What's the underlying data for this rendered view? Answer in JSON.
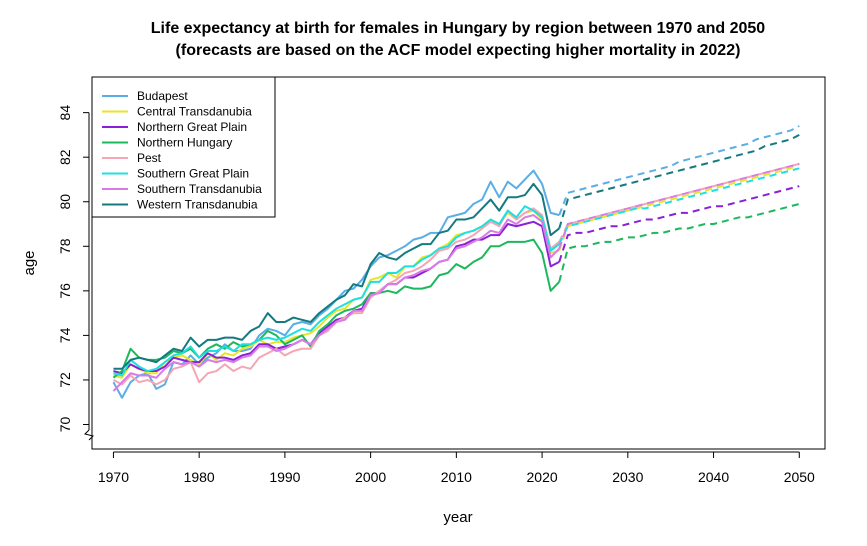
{
  "chart_data": {
    "type": "line",
    "title": "Life expectancy at birth for females in Hungary by region between 1970 and 2050",
    "subtitle": "(forecasts are based on the ACF model expecting higher mortality in 2022)",
    "xlabel": "year",
    "ylabel": "age",
    "xlim": [
      1967.5,
      2053
    ],
    "ylim": [
      68.9,
      85.6
    ],
    "x_ticks": [
      "1970",
      "1980",
      "1990",
      "2000",
      "2010",
      "2020",
      "2030",
      "2040",
      "2050"
    ],
    "y_ticks": [
      "70",
      "72",
      "74",
      "76",
      "78",
      "80",
      "82",
      "84"
    ],
    "axis_break": "y",
    "legend_position": "top-left",
    "grid": false,
    "observed_years": [
      1970,
      2022
    ],
    "forecast_years": [
      2022,
      2050
    ],
    "forecast_style": "dashed",
    "series": [
      {
        "name": "Budapest",
        "color": "#5AAEE6",
        "observed": [
          71.9,
          71.2,
          71.9,
          72.2,
          72.3,
          71.6,
          71.8,
          72.8,
          72.7,
          73.1,
          72.7,
          73.0,
          73.2,
          73.6,
          73.3,
          73.3,
          73.4,
          74.0,
          74.3,
          74.2,
          74.0,
          74.5,
          74.6,
          74.5,
          74.9,
          75.2,
          75.6,
          76.0,
          76.1,
          76.5,
          77.1,
          77.5,
          77.6,
          77.8,
          78.0,
          78.3,
          78.4,
          78.6,
          78.6,
          79.3,
          79.4,
          79.5,
          79.9,
          80.1,
          80.9,
          80.2,
          80.9,
          80.6,
          81.0,
          81.4,
          80.8,
          79.5,
          79.4
        ],
        "forecast": [
          79.4,
          80.4,
          80.5,
          80.6,
          80.7,
          80.8,
          80.9,
          81.0,
          81.1,
          81.2,
          81.3,
          81.4,
          81.5,
          81.6,
          81.8,
          81.9,
          82.0,
          82.1,
          82.2,
          82.3,
          82.4,
          82.5,
          82.6,
          82.8,
          82.9,
          83.0,
          83.1,
          83.2,
          83.4
        ]
      },
      {
        "name": "Central Transdanubia",
        "color": "#E6E629",
        "observed": [
          72.2,
          72.1,
          72.7,
          72.5,
          72.3,
          72.3,
          72.8,
          73.0,
          73.1,
          72.9,
          72.7,
          73.2,
          72.9,
          73.2,
          73.1,
          73.4,
          73.5,
          73.8,
          73.6,
          73.7,
          73.7,
          73.9,
          74.0,
          74.1,
          74.4,
          74.8,
          75.1,
          75.2,
          75.6,
          75.7,
          76.5,
          76.6,
          76.8,
          76.6,
          77.1,
          77.1,
          77.5,
          77.6,
          77.9,
          78.1,
          78.5,
          78.6,
          78.7,
          78.9,
          79.2,
          79.0,
          79.5,
          79.2,
          79.5,
          79.6,
          79.2,
          77.7,
          77.8
        ],
        "forecast": [
          77.8,
          78.9,
          79.0,
          79.1,
          79.2,
          79.3,
          79.4,
          79.5,
          79.6,
          79.7,
          79.8,
          79.9,
          80.0,
          80.1,
          80.2,
          80.3,
          80.4,
          80.5,
          80.6,
          80.7,
          80.8,
          80.9,
          81.0,
          81.1,
          81.2,
          81.3,
          81.4,
          81.5,
          81.7
        ]
      },
      {
        "name": "Northern Great Plain",
        "color": "#8B21D6",
        "observed": [
          72.4,
          72.3,
          72.7,
          72.5,
          72.4,
          72.4,
          72.6,
          73.0,
          72.9,
          72.8,
          72.8,
          73.2,
          73.0,
          73.0,
          72.9,
          73.1,
          73.2,
          73.6,
          73.6,
          73.4,
          73.5,
          73.6,
          73.8,
          73.6,
          74.1,
          74.4,
          74.7,
          74.8,
          75.1,
          75.2,
          75.9,
          75.9,
          76.3,
          76.3,
          76.6,
          76.6,
          76.8,
          77.0,
          77.3,
          77.4,
          78.0,
          78.1,
          78.3,
          78.3,
          78.5,
          78.5,
          79.0,
          78.9,
          79.0,
          79.1,
          78.9,
          77.1,
          77.3
        ],
        "forecast": [
          77.3,
          78.5,
          78.6,
          78.6,
          78.7,
          78.8,
          78.9,
          78.9,
          79.0,
          79.1,
          79.2,
          79.2,
          79.3,
          79.4,
          79.5,
          79.5,
          79.6,
          79.7,
          79.8,
          79.8,
          79.9,
          80.0,
          80.1,
          80.2,
          80.3,
          80.4,
          80.5,
          80.6,
          80.7
        ]
      },
      {
        "name": "Northern Hungary",
        "color": "#1CB85C",
        "observed": [
          72.1,
          72.4,
          73.4,
          73.0,
          72.9,
          72.9,
          73.0,
          73.3,
          73.2,
          73.4,
          73.0,
          73.4,
          73.6,
          73.4,
          73.7,
          73.5,
          73.6,
          73.8,
          74.2,
          74.0,
          73.6,
          73.8,
          74.0,
          73.5,
          74.2,
          74.5,
          74.9,
          75.1,
          75.2,
          75.4,
          75.9,
          75.9,
          76.0,
          75.9,
          76.2,
          76.1,
          76.1,
          76.2,
          76.7,
          76.8,
          77.2,
          77.0,
          77.3,
          77.5,
          78.0,
          78.0,
          78.2,
          78.2,
          78.2,
          78.3,
          77.7,
          76.0,
          76.4
        ],
        "forecast": [
          76.4,
          77.9,
          78.0,
          78.0,
          78.1,
          78.2,
          78.2,
          78.3,
          78.4,
          78.4,
          78.5,
          78.6,
          78.6,
          78.7,
          78.8,
          78.8,
          78.9,
          79.0,
          79.0,
          79.1,
          79.2,
          79.3,
          79.3,
          79.4,
          79.5,
          79.6,
          79.7,
          79.8,
          79.9
        ]
      },
      {
        "name": "Pest",
        "color": "#F4A6B4",
        "observed": [
          72.0,
          71.8,
          72.2,
          71.9,
          72.0,
          71.8,
          72.0,
          72.5,
          72.6,
          72.8,
          71.9,
          72.3,
          72.4,
          72.7,
          72.4,
          72.6,
          72.5,
          73.0,
          73.2,
          73.4,
          73.1,
          73.3,
          73.4,
          73.4,
          74.0,
          74.2,
          74.6,
          74.8,
          75.0,
          75.0,
          75.7,
          76.0,
          76.3,
          76.5,
          76.8,
          76.9,
          77.1,
          77.4,
          77.8,
          77.9,
          78.2,
          78.3,
          78.5,
          78.8,
          79.1,
          78.9,
          79.6,
          79.2,
          79.5,
          79.7,
          79.4,
          77.9,
          78.2
        ],
        "forecast": [
          78.2,
          79.0,
          79.1,
          79.2,
          79.3,
          79.4,
          79.5,
          79.6,
          79.7,
          79.8,
          79.9,
          80.0,
          80.1,
          80.2,
          80.3,
          80.4,
          80.5,
          80.6,
          80.7,
          80.8,
          80.9,
          81.0,
          81.1,
          81.2,
          81.3,
          81.4,
          81.5,
          81.6,
          81.7
        ]
      },
      {
        "name": "Southern Great Plain",
        "color": "#1DE0E0",
        "observed": [
          72.3,
          72.2,
          72.9,
          72.6,
          72.4,
          72.5,
          72.8,
          73.1,
          73.2,
          73.5,
          73.0,
          73.3,
          73.3,
          73.5,
          73.3,
          73.6,
          73.6,
          73.8,
          73.9,
          73.8,
          73.9,
          74.1,
          74.3,
          74.2,
          74.6,
          74.9,
          75.2,
          75.4,
          75.6,
          75.7,
          76.4,
          76.4,
          76.8,
          76.8,
          77.1,
          77.1,
          77.4,
          77.6,
          77.9,
          78.0,
          78.4,
          78.6,
          78.7,
          78.9,
          79.2,
          79.0,
          79.6,
          79.3,
          79.8,
          79.6,
          79.3,
          77.8,
          78.1
        ],
        "forecast": [
          78.1,
          78.9,
          79.0,
          79.1,
          79.2,
          79.3,
          79.4,
          79.5,
          79.6,
          79.7,
          79.7,
          79.8,
          79.9,
          80.0,
          80.1,
          80.2,
          80.3,
          80.4,
          80.5,
          80.6,
          80.7,
          80.8,
          80.9,
          81.0,
          81.1,
          81.2,
          81.3,
          81.4,
          81.5
        ]
      },
      {
        "name": "Southern Transdanubia",
        "color": "#D97BE6",
        "observed": [
          71.5,
          71.9,
          72.3,
          72.2,
          72.2,
          72.1,
          72.5,
          72.8,
          72.7,
          72.8,
          72.6,
          72.9,
          72.8,
          72.9,
          72.8,
          73.0,
          73.1,
          73.5,
          73.5,
          73.3,
          73.4,
          73.6,
          73.8,
          73.6,
          74.0,
          74.3,
          74.6,
          74.7,
          75.1,
          75.1,
          75.8,
          75.9,
          76.3,
          76.3,
          76.6,
          76.7,
          76.9,
          77.0,
          77.3,
          77.4,
          77.9,
          78.0,
          78.2,
          78.4,
          78.7,
          78.6,
          79.2,
          79.0,
          79.3,
          79.4,
          79.1,
          77.5,
          77.9
        ],
        "forecast": [
          77.9,
          79.0,
          79.1,
          79.2,
          79.3,
          79.4,
          79.5,
          79.6,
          79.7,
          79.8,
          79.9,
          80.0,
          80.1,
          80.2,
          80.3,
          80.4,
          80.5,
          80.6,
          80.7,
          80.8,
          80.9,
          81.0,
          81.1,
          81.2,
          81.3,
          81.4,
          81.5,
          81.6,
          81.7
        ]
      },
      {
        "name": "Western Transdanubia",
        "color": "#147A80",
        "observed": [
          72.5,
          72.5,
          72.9,
          73.0,
          72.9,
          72.8,
          73.1,
          73.4,
          73.3,
          73.9,
          73.5,
          73.8,
          73.8,
          73.9,
          73.9,
          73.8,
          74.2,
          74.4,
          75.0,
          74.6,
          74.6,
          74.8,
          74.7,
          74.6,
          75.0,
          75.3,
          75.6,
          75.8,
          76.3,
          76.2,
          77.2,
          77.7,
          77.5,
          77.4,
          77.7,
          77.9,
          78.1,
          78.1,
          78.6,
          78.7,
          79.2,
          79.2,
          79.3,
          79.7,
          80.1,
          79.6,
          80.2,
          80.2,
          80.3,
          80.8,
          80.3,
          78.5,
          78.8
        ],
        "forecast": [
          78.8,
          80.1,
          80.2,
          80.3,
          80.4,
          80.5,
          80.6,
          80.7,
          80.8,
          80.9,
          81.0,
          81.1,
          81.2,
          81.3,
          81.4,
          81.5,
          81.6,
          81.7,
          81.8,
          81.9,
          82.0,
          82.1,
          82.2,
          82.3,
          82.5,
          82.6,
          82.7,
          82.8,
          83.0
        ]
      }
    ]
  }
}
